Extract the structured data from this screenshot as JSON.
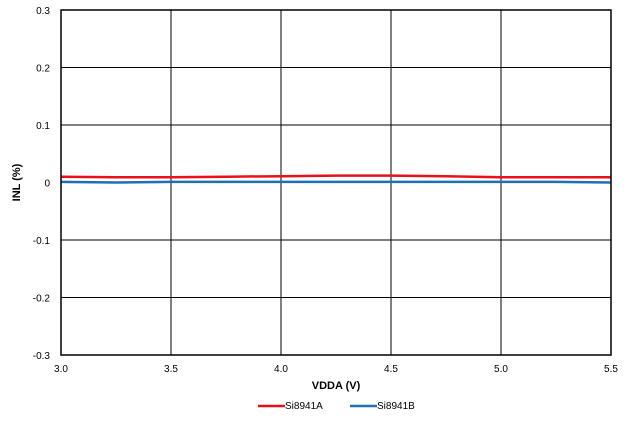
{
  "chart_data": {
    "type": "line",
    "title": "",
    "xlabel": "VDDA (V)",
    "ylabel": "INL (%)",
    "xlim": [
      3.0,
      5.5
    ],
    "ylim": [
      -0.3,
      0.3
    ],
    "x_ticks": [
      "3.0",
      "3.5",
      "4.0",
      "4.5",
      "5.0",
      "5.5"
    ],
    "y_ticks": [
      "0.3",
      "0.2",
      "0.1",
      "0",
      "-0.1",
      "-0.2",
      "-0.3"
    ],
    "grid": true,
    "legend_position": "bottom",
    "series": [
      {
        "name": "Si8941A",
        "color": "#e8101a",
        "x": [
          3.0,
          3.25,
          3.5,
          3.75,
          4.0,
          4.25,
          4.5,
          4.75,
          5.0,
          5.25,
          5.5
        ],
        "y": [
          0.01,
          0.009,
          0.009,
          0.01,
          0.011,
          0.012,
          0.012,
          0.011,
          0.009,
          0.009,
          0.009
        ]
      },
      {
        "name": "Si8941B",
        "color": "#1f6fb4",
        "x": [
          3.0,
          3.25,
          3.5,
          3.75,
          4.0,
          4.25,
          4.5,
          4.75,
          5.0,
          5.25,
          5.5
        ],
        "y": [
          0.001,
          0.0,
          0.001,
          0.001,
          0.001,
          0.001,
          0.001,
          0.001,
          0.001,
          0.001,
          0.0
        ]
      }
    ]
  }
}
